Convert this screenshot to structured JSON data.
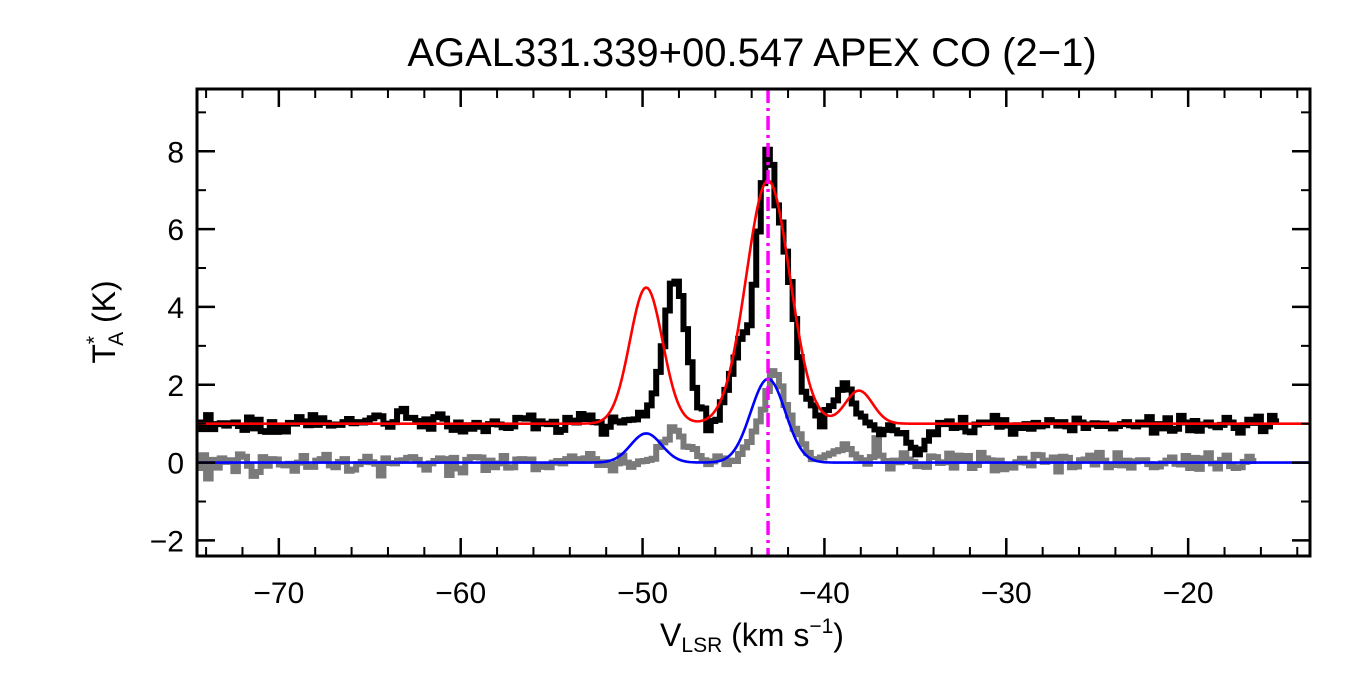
{
  "chart_data": {
    "type": "line",
    "title": "AGAL331.339+00.547  APEX CO (2−1)",
    "xlabel": {
      "main": "V",
      "sub": "LSR",
      "unit": " (km s",
      "sup": "−1",
      "close": ")"
    },
    "ylabel": {
      "main": "T",
      "sup": "*",
      "sub": "A",
      "unit": " (K)"
    },
    "xlim": [
      -74.5,
      -13.3
    ],
    "ylim": [
      -2.4,
      9.6
    ],
    "xticks": [
      -70,
      -60,
      -50,
      -40,
      -30,
      -20
    ],
    "xtick_labels": [
      "−70",
      "−60",
      "−50",
      "−40",
      "−30",
      "−20"
    ],
    "yticks": [
      -2,
      0,
      2,
      4,
      6,
      8
    ],
    "ytick_labels": [
      "−2",
      "0",
      "2",
      "4",
      "6",
      "8"
    ],
    "vline_x": -43.1,
    "series": [
      {
        "style": "histogram",
        "color": "#000000",
        "x_start": -74.5,
        "x_step": 0.25,
        "values": [
          1.03,
          0.86,
          1.22,
          0.86,
          0.99,
          1.01,
          0.95,
          1.01,
          1.03,
          0.94,
          0.84,
          1.16,
          0.88,
          1.1,
          0.81,
          0.79,
          1.04,
          0.79,
          0.95,
          0.8,
          1.02,
          1.0,
          1.17,
          1.06,
          0.96,
          1.22,
          0.97,
          1.14,
          1.02,
          0.95,
          0.98,
          0.97,
          1.04,
          1.12,
          1.01,
          1.04,
          1.03,
          1.08,
          1.14,
          1.21,
          1.19,
          1.0,
          0.92,
          1.04,
          1.32,
          1.38,
          1.15,
          1.15,
          1.07,
          0.93,
          1.11,
          0.87,
          1.17,
          1.24,
          1.13,
          0.93,
          0.84,
          1.03,
          0.8,
          0.96,
          0.87,
          1.02,
          0.92,
          0.81,
          0.99,
          1.06,
          0.98,
          0.91,
          0.89,
          0.93,
          1.15,
          1.14,
          1.13,
          1.21,
          0.88,
          1.06,
          1.0,
          0.99,
          1.05,
          0.79,
          0.84,
          1.15,
          1.08,
          1.03,
          1.25,
          1.12,
          1.21,
          1.04,
          1.03,
          0.74,
          0.92,
          1.16,
          1.06,
          1.03,
          1.09,
          1.1,
          1.11,
          1.28,
          1.21,
          1.47,
          1.78,
          2.33,
          2.99,
          3.91,
          4.6,
          4.65,
          4.28,
          3.43,
          2.58,
          1.92,
          1.42,
          1.39,
          0.83,
          1.07,
          1.1,
          1.55,
          1.87,
          2.28,
          2.7,
          3.18,
          3.35,
          3.53,
          4.57,
          5.94,
          7.18,
          8.04,
          7.65,
          6.61,
          6.17,
          5.42,
          4.64,
          3.69,
          2.71,
          1.82,
          1.64,
          1.47,
          1.21,
          0.93,
          1.35,
          1.45,
          1.6,
          1.87,
          2.04,
          1.88,
          1.52,
          1.26,
          1.18,
          1.03,
          0.96,
          0.85,
          0.73,
          0.84,
          0.96,
          0.83,
          0.75,
          0.76,
          0.51,
          0.38,
          0.21,
          0.34,
          0.56,
          0.78,
          0.73,
          1.02,
          0.99,
          1.06,
          0.89,
          0.91,
          1.15,
          0.8,
          0.78,
          0.98,
          1.03,
          1.02,
          1.03,
          1.2,
          0.92,
          1.09,
          0.95,
          0.74,
          0.96,
          0.89,
          0.99,
          0.87,
          1.02,
          0.93,
          0.96,
          1.09,
          1.04,
          0.95,
          1.04,
          0.93,
          0.83,
          1.13,
          1.03,
          0.89,
          0.98,
          1.01,
          0.94,
          1.0,
          0.94,
          0.88,
          0.94,
          0.99,
          1.04,
          0.96,
          0.93,
          1.03,
          0.98,
          1.17,
          0.77,
          0.99,
          0.88,
          1.14,
          0.82,
          0.87,
          1.2,
          1.03,
          0.83,
          1.07,
          0.82,
          0.98,
          1.03,
          0.95,
          0.91,
          0.97,
          1.15,
          1.03,
          0.89,
          0.77,
          0.96,
          1.1,
          1.02,
          1.18,
          0.81,
          0.93,
          1.2,
          1.06
        ]
      },
      {
        "style": "histogram",
        "color": "#7a7a7a",
        "x_start": -74.5,
        "x_step": 0.25,
        "values": [
          -0.14,
          0.19,
          -0.41,
          0.07,
          -0.13,
          0.11,
          0.02,
          0.06,
          -0.22,
          0.21,
          0.15,
          -0.08,
          -0.34,
          -0.24,
          0.14,
          -0.08,
          0.09,
          0.08,
          -0.05,
          -0.07,
          -0.03,
          -0.21,
          0.0,
          0.17,
          -0.11,
          -0.11,
          0.05,
          0.09,
          0.2,
          -0.07,
          -0.12,
          0.02,
          0.09,
          -0.21,
          -0.18,
          -0.04,
          0.02,
          0.15,
          0.01,
          -0.03,
          -0.33,
          0.11,
          -0.01,
          -0.02,
          0.05,
          0.06,
          0.12,
          0.14,
          0.07,
          -0.05,
          -0.18,
          -0.02,
          0.04,
          0.11,
          0.09,
          -0.32,
          0.12,
          -0.15,
          -0.25,
          0.07,
          0.14,
          0.14,
          0.13,
          -0.19,
          0.05,
          -0.12,
          -0.02,
          0.17,
          -0.13,
          -0.12,
          0.08,
          0.09,
          0.08,
          0.08,
          -0.17,
          -0.11,
          -0.08,
          -0.12,
          0.0,
          0.04,
          -0.02,
          0.09,
          0.16,
          0.09,
          0.05,
          0.11,
          0.22,
          0.09,
          -0.06,
          0.01,
          -0.06,
          -0.2,
          -0.02,
          0.18,
          0.0,
          -0.11,
          -0.04,
          0.03,
          0.04,
          0.07,
          0.1,
          0.4,
          0.52,
          0.59,
          0.91,
          0.82,
          0.67,
          0.41,
          0.4,
          0.35,
          0.17,
          0.06,
          -0.04,
          0.03,
          0.16,
          0.11,
          -0.04,
          0.05,
          0.04,
          0.22,
          0.39,
          0.53,
          0.8,
          1.06,
          1.36,
          1.84,
          2.35,
          2.25,
          1.96,
          1.48,
          1.21,
          0.87,
          0.73,
          0.47,
          0.25,
          0.09,
          0.09,
          0.13,
          0.19,
          0.23,
          0.29,
          0.32,
          0.47,
          0.35,
          0.21,
          0.12,
          0.06,
          -0.03,
          0.14,
          0.63,
          0.18,
          0.04,
          -0.15,
          0.05,
          0.01,
          0.24,
          0.08,
          0.02,
          -0.09,
          -0.05,
          -0.11,
          0.16,
          0.14,
          -0.01,
          0.01,
          0.23,
          -0.13,
          0.18,
          0.06,
          0.17,
          -0.14,
          -0.06,
          0.25,
          0.11,
          0.06,
          -0.2,
          0.05,
          -0.17,
          -0.05,
          -0.13,
          0.01,
          0.1,
          0.0,
          -0.07,
          0.2,
          0.19,
          0.02,
          0.05,
          0.13,
          -0.23,
          0.15,
          0.12,
          -0.12,
          -0.1,
          0.06,
          0.08,
          0.18,
          -0.05,
          0.25,
          0.05,
          -0.12,
          -0.06,
          0.24,
          -0.07,
          0.05,
          -0.13,
          0.03,
          0.06,
          0.06,
          -0.04,
          -0.12,
          -0.1,
          -0.02,
          0.05,
          0.13,
          -0.03,
          -0.05,
          0.17,
          -0.14,
          0.12,
          -0.16,
          0.11,
          0.24,
          -0.02,
          -0.15,
          0.07,
          0.18,
          -0.09,
          -0.14,
          -0.12,
          0.02,
          0.15,
          0.04
        ]
      },
      {
        "style": "gaussian-fit",
        "color": "#ff0000",
        "baseline": 1.0,
        "components": [
          {
            "amp": 3.5,
            "center": -49.8,
            "sigma": 0.9
          },
          {
            "amp": 6.25,
            "center": -43.1,
            "sigma": 1.2
          },
          {
            "amp": 0.85,
            "center": -38.1,
            "sigma": 0.75
          }
        ]
      },
      {
        "style": "gaussian-fit",
        "color": "#0000ff",
        "baseline": 0.0,
        "components": [
          {
            "amp": 0.75,
            "center": -49.8,
            "sigma": 0.85
          },
          {
            "amp": 2.15,
            "center": -43.1,
            "sigma": 0.95
          }
        ]
      }
    ]
  },
  "colors": {
    "vline": "#ff00ff",
    "axes": "#000000"
  }
}
